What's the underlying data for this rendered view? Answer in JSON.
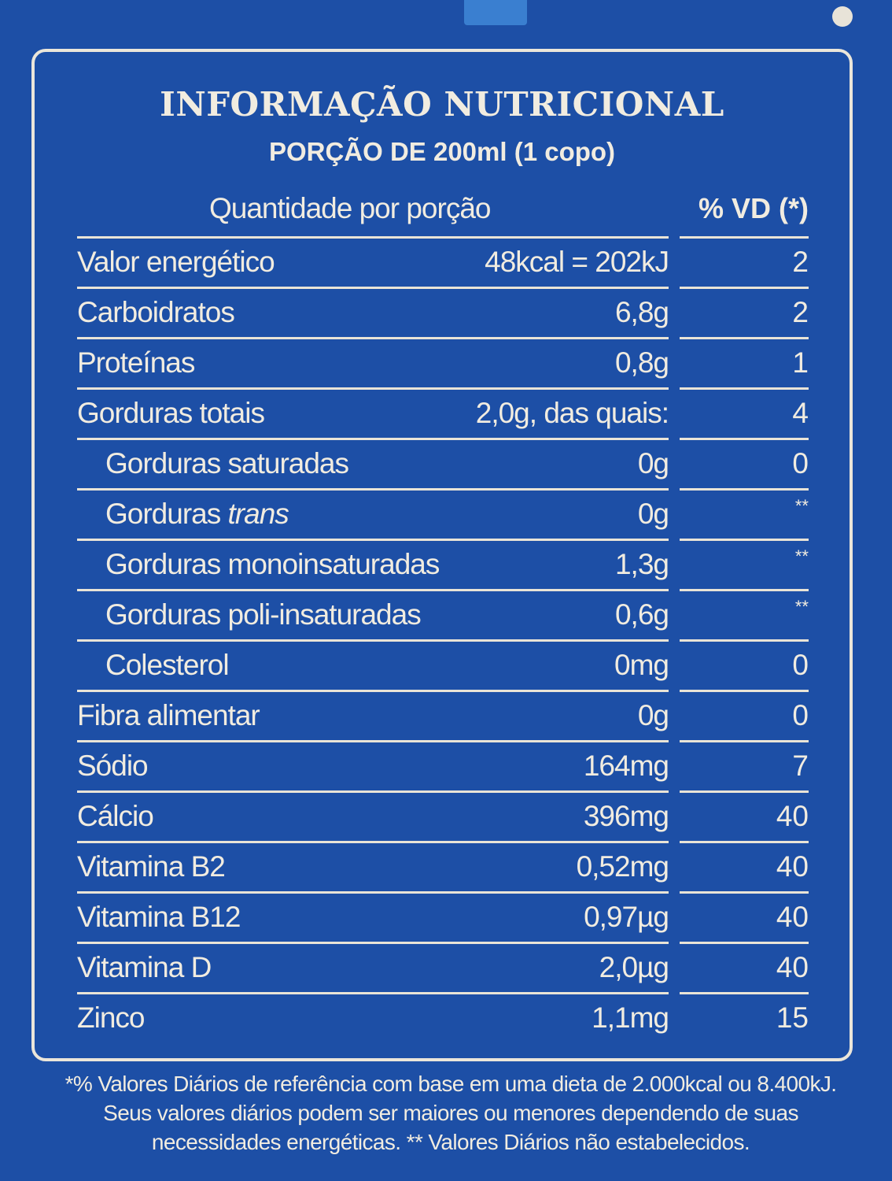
{
  "title": "INFORMAÇÃO NUTRICIONAL",
  "serving": "PORÇÃO DE 200ml (1 copo)",
  "header": {
    "quantity": "Quantidade por porção",
    "dv": "% VD (*)"
  },
  "rows": [
    {
      "label": "Valor energético",
      "italic": "",
      "amount": "48kcal = 202kJ",
      "dv": "2",
      "indent": false
    },
    {
      "label": "Carboidratos",
      "italic": "",
      "amount": "6,8g",
      "dv": "2",
      "indent": false
    },
    {
      "label": "Proteínas",
      "italic": "",
      "amount": "0,8g",
      "dv": "1",
      "indent": false
    },
    {
      "label": "Gorduras totais",
      "italic": "",
      "amount": "2,0g, das quais:",
      "dv": "4",
      "indent": false
    },
    {
      "label": "Gorduras saturadas",
      "italic": "",
      "amount": "0g",
      "dv": "0",
      "indent": true
    },
    {
      "label": "Gorduras ",
      "italic": "trans",
      "amount": "0g",
      "dv": "**",
      "indent": true
    },
    {
      "label": "Gorduras monoinsaturadas",
      "italic": "",
      "amount": "1,3g",
      "dv": "**",
      "indent": true
    },
    {
      "label": "Gorduras poli-insaturadas",
      "italic": "",
      "amount": "0,6g",
      "dv": "**",
      "indent": true
    },
    {
      "label": "Colesterol",
      "italic": "",
      "amount": "0mg",
      "dv": "0",
      "indent": true
    },
    {
      "label": "Fibra alimentar",
      "italic": "",
      "amount": "0g",
      "dv": "0",
      "indent": false
    },
    {
      "label": "Sódio",
      "italic": "",
      "amount": "164mg",
      "dv": "7",
      "indent": false
    },
    {
      "label": "Cálcio",
      "italic": "",
      "amount": "396mg",
      "dv": "40",
      "indent": false
    },
    {
      "label": "Vitamina B2",
      "italic": "",
      "amount": "0,52mg",
      "dv": "40",
      "indent": false
    },
    {
      "label": "Vitamina B12",
      "italic": "",
      "amount": "0,97µg",
      "dv": "40",
      "indent": false
    },
    {
      "label": "Vitamina D",
      "italic": "",
      "amount": "2,0µg",
      "dv": "40",
      "indent": false
    },
    {
      "label": "Zinco",
      "italic": "",
      "amount": "1,1mg",
      "dv": "15",
      "indent": false
    }
  ],
  "footnote": "*% Valores Diários de referência com base em uma dieta de 2.000kcal ou 8.400kJ. Seus valores diários podem ser maiores ou menores dependendo de suas necessidades energéticas. ** Valores Diários não estabelecidos."
}
